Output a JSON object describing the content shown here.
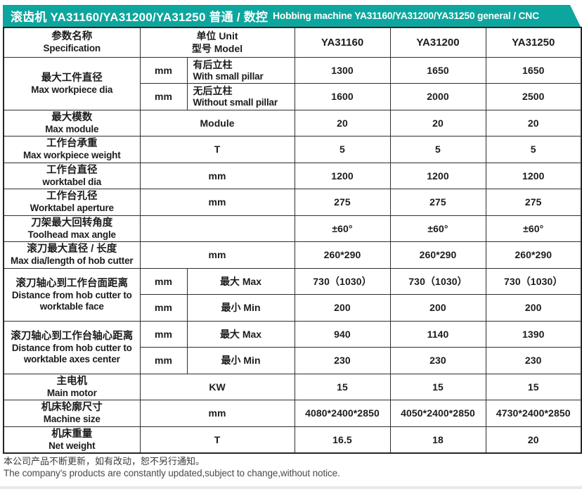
{
  "title_bar": {
    "text_cn": "滚齿机 YA31160/YA31200/YA31250 普通 / 数控",
    "text_en": "Hobbing machine YA31160/YA31200/YA31250 general / CNC"
  },
  "colors": {
    "accent": "#0da69e",
    "header_bg": "#cde8e4",
    "stripe_bg": "#e9f4f1",
    "border": "#2e2e2e"
  },
  "table": {
    "header": {
      "spec_cn": "参数名称",
      "spec_en": "Specification",
      "unit_label": "单位 Unit",
      "model_label": "型号 Model",
      "models": [
        "YA31160",
        "YA31200",
        "YA31250"
      ]
    },
    "params": [
      {
        "label_cn": "最大工件直径",
        "label_en": "Max workpiece dia",
        "label_tint": false,
        "subrows": [
          {
            "unit": "mm",
            "sub": [
              "有后立柱",
              "With small pillar"
            ],
            "tint": false,
            "values": [
              "1300",
              "1650",
              "1650"
            ]
          },
          {
            "unit": "mm",
            "sub": [
              "无后立柱",
              "Without small pillar"
            ],
            "tint": true,
            "values": [
              "1600",
              "2000",
              "2500"
            ]
          }
        ]
      },
      {
        "label_cn": "最大模数",
        "label_en": "Max module",
        "label_tint": false,
        "subrows": [
          {
            "merged": "Module",
            "tint": false,
            "values": [
              "20",
              "20",
              "20"
            ]
          }
        ]
      },
      {
        "label_cn": "工作台承重",
        "label_en": "Max workpiece weight",
        "label_tint": true,
        "subrows": [
          {
            "merged": "T",
            "tint": true,
            "values": [
              "5",
              "5",
              "5"
            ]
          }
        ]
      },
      {
        "label_cn": "工作台直径",
        "label_en": "worktabel dia",
        "label_tint": false,
        "subrows": [
          {
            "merged": "mm",
            "tint": false,
            "values": [
              "1200",
              "1200",
              "1200"
            ]
          }
        ]
      },
      {
        "label_cn": "工作台孔径",
        "label_en": "Worktabel aperture",
        "label_tint": true,
        "subrows": [
          {
            "merged": "mm",
            "tint": true,
            "values": [
              "275",
              "275",
              "275"
            ]
          }
        ]
      },
      {
        "label_cn": "刀架最大回转角度",
        "label_en": "Toolhead max angle",
        "label_tint": false,
        "subrows": [
          {
            "merged": "",
            "tint": false,
            "values": [
              "±60°",
              "±60°",
              "±60°"
            ]
          }
        ]
      },
      {
        "label_cn": "滚刀最大直径 / 长度",
        "label_en": "Max dia/length of hob cutter",
        "label_tint": true,
        "subrows": [
          {
            "merged": "mm",
            "tint": true,
            "values": [
              "260*290",
              "260*290",
              "260*290"
            ]
          }
        ]
      },
      {
        "label_cn": "滚刀轴心到工作台面距离",
        "label_en": "Distance from hob cutter to worktable face",
        "label_tint": false,
        "subrows": [
          {
            "unit": "mm",
            "sub": [
              "最大 Max"
            ],
            "tint": false,
            "values": [
              "730（1030）",
              "730（1030）",
              "730（1030）"
            ]
          },
          {
            "unit": "mm",
            "sub": [
              "最小 Min"
            ],
            "tint": true,
            "values": [
              "200",
              "200",
              "200"
            ]
          }
        ]
      },
      {
        "label_cn": "滚刀轴心到工作台轴心距离",
        "label_en": "Distance from hob cutter to worktable axes center",
        "label_tint": true,
        "subrows": [
          {
            "unit": "mm",
            "sub": [
              "最大 Max"
            ],
            "tint": false,
            "values": [
              "940",
              "1140",
              "1390"
            ]
          },
          {
            "unit": "mm",
            "sub": [
              "最小 Min"
            ],
            "tint": true,
            "values": [
              "230",
              "230",
              "230"
            ]
          }
        ]
      },
      {
        "label_cn": "主电机",
        "label_en": "Main motor",
        "label_tint": false,
        "subrows": [
          {
            "merged": "KW",
            "tint": false,
            "values": [
              "15",
              "15",
              "15"
            ]
          }
        ]
      },
      {
        "label_cn": "机床轮廓尺寸",
        "label_en": "Machine size",
        "label_tint": true,
        "subrows": [
          {
            "merged": "mm",
            "tint": true,
            "values": [
              "4080*2400*2850",
              "4050*2400*2850",
              "4730*2400*2850"
            ]
          }
        ]
      },
      {
        "label_cn": "机床重量",
        "label_en": "Net weight",
        "label_tint": false,
        "subrows": [
          {
            "merged": "T",
            "tint": false,
            "values": [
              "16.5",
              "18",
              "20"
            ]
          }
        ]
      }
    ]
  },
  "footer": {
    "line_cn": "本公司产品不断更新，如有改动，恕不另行通知。",
    "line_en": "The company's products are constantly updated,subject to change,without notice."
  }
}
